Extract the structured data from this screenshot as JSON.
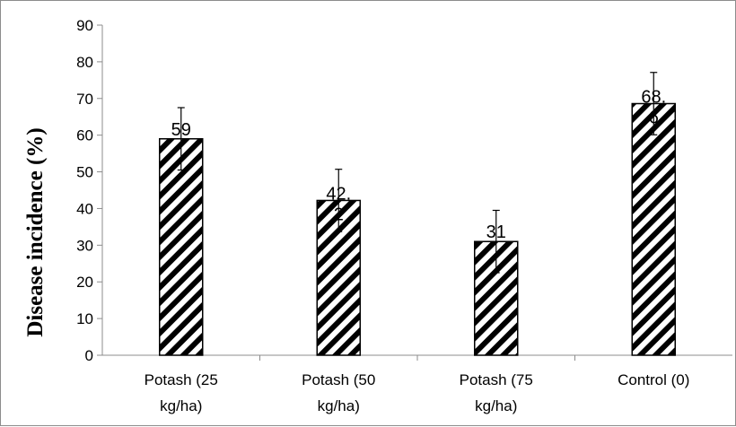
{
  "chart_data": {
    "type": "bar",
    "title": "",
    "xlabel": "",
    "ylabel": "Disease incidence (%)",
    "ylim": [
      0,
      90
    ],
    "yticks": [
      0,
      10,
      20,
      30,
      40,
      50,
      60,
      70,
      80,
      90
    ],
    "categories": [
      [
        "Potash (25",
        "kg/ha)"
      ],
      [
        "Potash (50",
        "kg/ha)"
      ],
      [
        "Potash (75",
        "kg/ha)"
      ],
      [
        "Control (0)"
      ]
    ],
    "values": [
      59,
      42.2,
      31,
      68.6
    ],
    "data_labels": [
      [
        "59"
      ],
      [
        "42.",
        "2"
      ],
      [
        "31"
      ],
      [
        "68.",
        "6"
      ]
    ],
    "error": [
      8.5,
      8.5,
      8.5,
      8.5
    ],
    "bar_fill": "diagonal-hatch",
    "bar_color": "#000000",
    "grid": false,
    "legend": "none"
  }
}
